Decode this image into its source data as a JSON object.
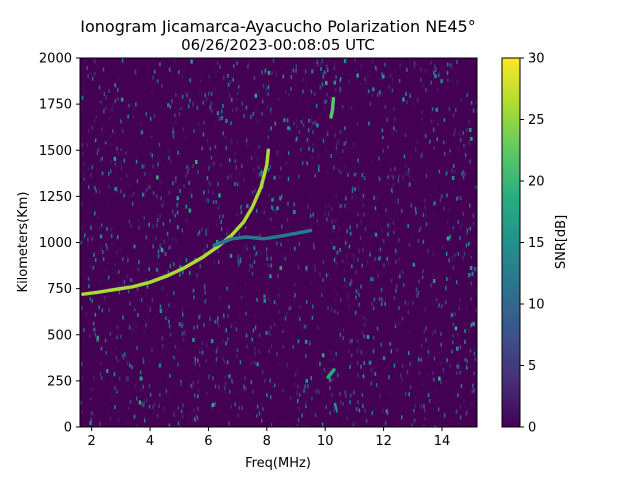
{
  "chart_data": {
    "type": "heatmap",
    "title": "Ionogram Jicamarca-Ayacucho Polarization NE45°",
    "subtitle": "06/26/2023-00:08:05 UTC",
    "xlabel": "Freq(MHz)",
    "ylabel": "Kilometers(Km)",
    "xlim": [
      1.6,
      15.2
    ],
    "ylim": [
      0,
      2000
    ],
    "xticks": [
      2,
      4,
      6,
      8,
      10,
      12,
      14
    ],
    "yticks": [
      0,
      250,
      500,
      750,
      1000,
      1250,
      1500,
      1750,
      2000
    ],
    "colorbar": {
      "label": "SNR[dB]",
      "range": [
        0,
        30
      ],
      "ticks": [
        0,
        5,
        10,
        15,
        20,
        25,
        30
      ],
      "colormap": "viridis"
    },
    "background_color": "#440154",
    "traces": [
      {
        "points": [
          [
            1.7,
            720
          ],
          [
            2.2,
            730
          ],
          [
            2.8,
            745
          ],
          [
            3.4,
            760
          ],
          [
            4.0,
            785
          ],
          [
            4.6,
            820
          ],
          [
            5.2,
            865
          ],
          [
            5.8,
            920
          ],
          [
            6.3,
            975
          ],
          [
            6.8,
            1040
          ],
          [
            7.2,
            1110
          ],
          [
            7.5,
            1190
          ],
          [
            7.8,
            1300
          ],
          [
            8.0,
            1420
          ],
          [
            8.05,
            1500
          ]
        ],
        "snr": 26
      },
      {
        "points": [
          [
            6.2,
            985
          ],
          [
            6.8,
            1020
          ],
          [
            7.3,
            1030
          ],
          [
            7.9,
            1020
          ],
          [
            8.5,
            1035
          ],
          [
            9.0,
            1050
          ],
          [
            9.5,
            1065
          ]
        ],
        "snr": 12
      },
      {
        "points": [
          [
            10.2,
            1680
          ],
          [
            10.25,
            1720
          ],
          [
            10.28,
            1780
          ]
        ],
        "snr": 22
      },
      {
        "points": [
          [
            10.1,
            270
          ],
          [
            10.2,
            290
          ],
          [
            10.3,
            310
          ]
        ],
        "snr": 18
      }
    ]
  }
}
